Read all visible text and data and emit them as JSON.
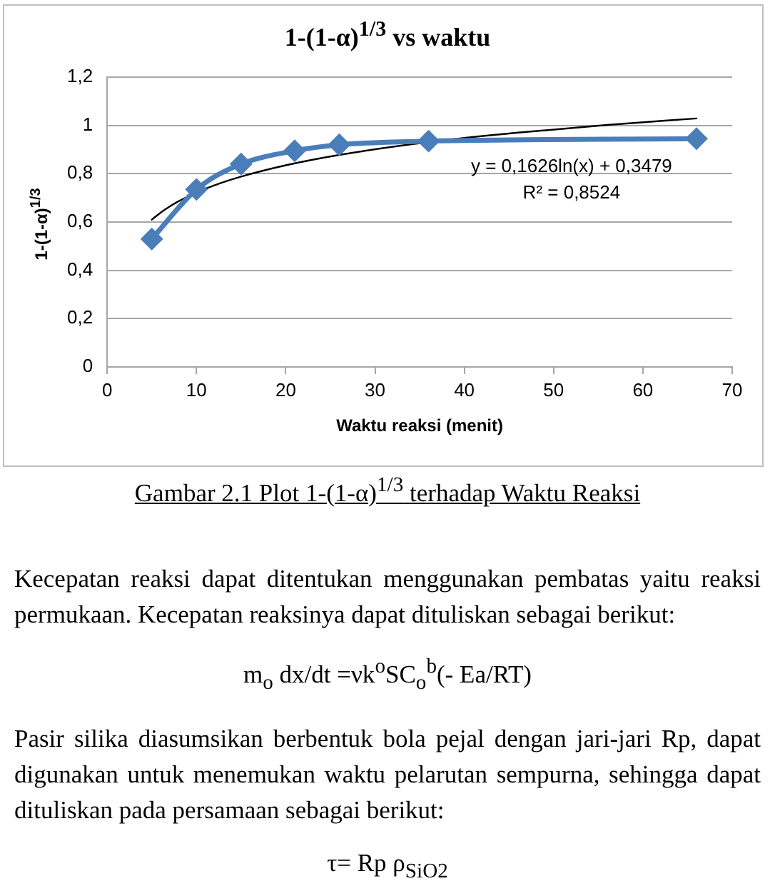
{
  "chart_data": {
    "type": "line",
    "title": "1-(1-α)$^{1/3}$ vs waktu",
    "xlabel": "Waktu reaksi (menit)",
    "ylabel": "1-(1-α)$^{1/3}$",
    "series": [
      {
        "color": "#4a7ebb",
        "x": [
          5,
          10,
          15,
          21,
          26,
          36,
          66
        ],
        "values": [
          0.53,
          0.735,
          0.84,
          0.895,
          0.92,
          0.935,
          0.945
        ]
      },
      {
        "type": "line",
        "color": "#000000",
        "marker": "none",
        "x": [
          5,
          6,
          7,
          8,
          10,
          12,
          15,
          20,
          26,
          36,
          46,
          56,
          66
        ],
        "values": [
          0.61,
          0.639,
          0.664,
          0.686,
          0.722,
          0.752,
          0.788,
          0.835,
          0.878,
          0.931,
          0.97,
          1.002,
          1.029
        ]
      }
    ],
    "xlim": [
      0,
      70
    ],
    "xticks": [
      0,
      10,
      20,
      30,
      40,
      50,
      60,
      70
    ],
    "ylim": [
      0,
      1.2
    ],
    "yticks": [
      0,
      {
        "value": 0.2,
        "label": "0,2"
      },
      {
        "value": 0.4,
        "label": "0,4"
      },
      {
        "value": 0.6,
        "label": "0,6"
      },
      {
        "value": 0.8,
        "label": "0,8"
      },
      1,
      {
        "value": 1.2,
        "label": "1,2"
      }
    ],
    "grid": "y",
    "marker": "diamond",
    "annotations": [
      "y = 0,1626ln(x) + 0,3479",
      "R² = 0,8524",
      "Gambar 2.1 Plot 1-(1-α)$^{1/3}$ terhadap Waktu Reaksi",
      "Kecepatan reaksi dapat ditentukan menggunakan pembatas yaitu reaksi permukaan. Kecepatan reaksinya dapat dituliskan sebagai berikut:",
      "m$_{o}$ dx/dt =νk$^{o}$SC$_{o}$$^{b}$(- Ea/RT)",
      "Pasir silika diasumsikan berbentuk bola pejal dengan jari-jari Rp, dapat digunakan untuk menemukan waktu pelarutan sempurna, sehingga dapat dituliskan pada persamaan sebagai berikut:",
      "τ= Rp ρ$_{SiO2}$"
    ]
  }
}
